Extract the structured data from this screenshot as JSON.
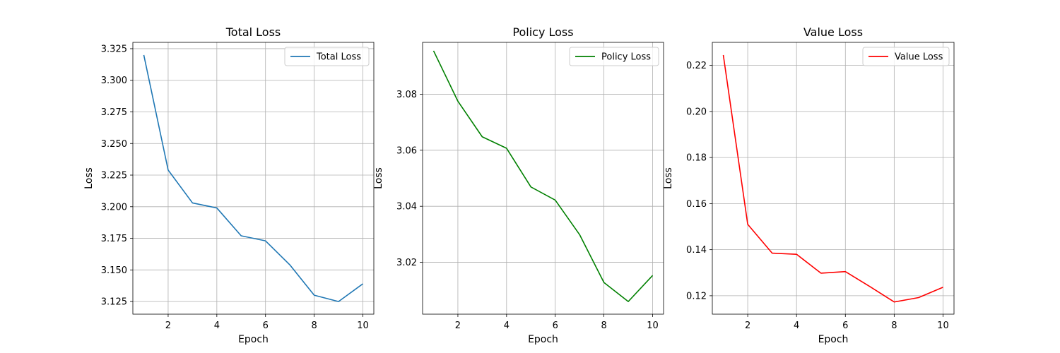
{
  "chart_data": [
    {
      "type": "line",
      "title": "Total Loss",
      "xlabel": "Epoch",
      "ylabel": "Loss",
      "x": [
        1,
        2,
        3,
        4,
        5,
        6,
        7,
        8,
        9,
        10
      ],
      "series": [
        {
          "name": "Total Loss",
          "color": "#1f77b4",
          "values": [
            3.32,
            3.229,
            3.203,
            3.199,
            3.177,
            3.173,
            3.154,
            3.13,
            3.125,
            3.139
          ]
        }
      ],
      "xlim": [
        0.55,
        10.45
      ],
      "ylim": [
        3.115,
        3.33
      ],
      "xticks": [
        2,
        4,
        6,
        8,
        10
      ],
      "yticks": [
        3.125,
        3.15,
        3.175,
        3.2,
        3.225,
        3.25,
        3.275,
        3.3,
        3.325
      ],
      "ytick_labels": [
        "3.125",
        "3.150",
        "3.175",
        "3.200",
        "3.225",
        "3.250",
        "3.275",
        "3.300",
        "3.325"
      ],
      "grid": true,
      "legend_position": "top-right"
    },
    {
      "type": "line",
      "title": "Policy Loss",
      "xlabel": "Epoch",
      "ylabel": "Loss",
      "x": [
        1,
        2,
        3,
        4,
        5,
        6,
        7,
        8,
        9,
        10
      ],
      "series": [
        {
          "name": "Policy Loss",
          "color": "#008000",
          "values": [
            3.0955,
            3.0775,
            3.0648,
            3.0607,
            3.0469,
            3.0422,
            3.0299,
            3.0128,
            3.006,
            3.0153
          ]
        }
      ],
      "xlim": [
        0.55,
        10.45
      ],
      "ylim": [
        3.0015,
        3.0985
      ],
      "xticks": [
        2,
        4,
        6,
        8,
        10
      ],
      "yticks": [
        3.02,
        3.04,
        3.06,
        3.08
      ],
      "ytick_labels": [
        "3.02",
        "3.04",
        "3.06",
        "3.08"
      ],
      "grid": true,
      "legend_position": "top-right"
    },
    {
      "type": "line",
      "title": "Value Loss",
      "xlabel": "Epoch",
      "ylabel": "Loss",
      "x": [
        1,
        2,
        3,
        4,
        5,
        6,
        7,
        8,
        9,
        10
      ],
      "series": [
        {
          "name": "Value Loss",
          "color": "#ff0000",
          "values": [
            0.2245,
            0.151,
            0.1385,
            0.138,
            0.1298,
            0.1305,
            0.124,
            0.1173,
            0.1192,
            0.1237
          ]
        }
      ],
      "xlim": [
        0.55,
        10.45
      ],
      "ylim": [
        0.112,
        0.23
      ],
      "xticks": [
        2,
        4,
        6,
        8,
        10
      ],
      "yticks": [
        0.12,
        0.14,
        0.16,
        0.18,
        0.2,
        0.22
      ],
      "ytick_labels": [
        "0.12",
        "0.14",
        "0.16",
        "0.18",
        "0.20",
        "0.22"
      ],
      "grid": true,
      "legend_position": "top-right"
    }
  ]
}
